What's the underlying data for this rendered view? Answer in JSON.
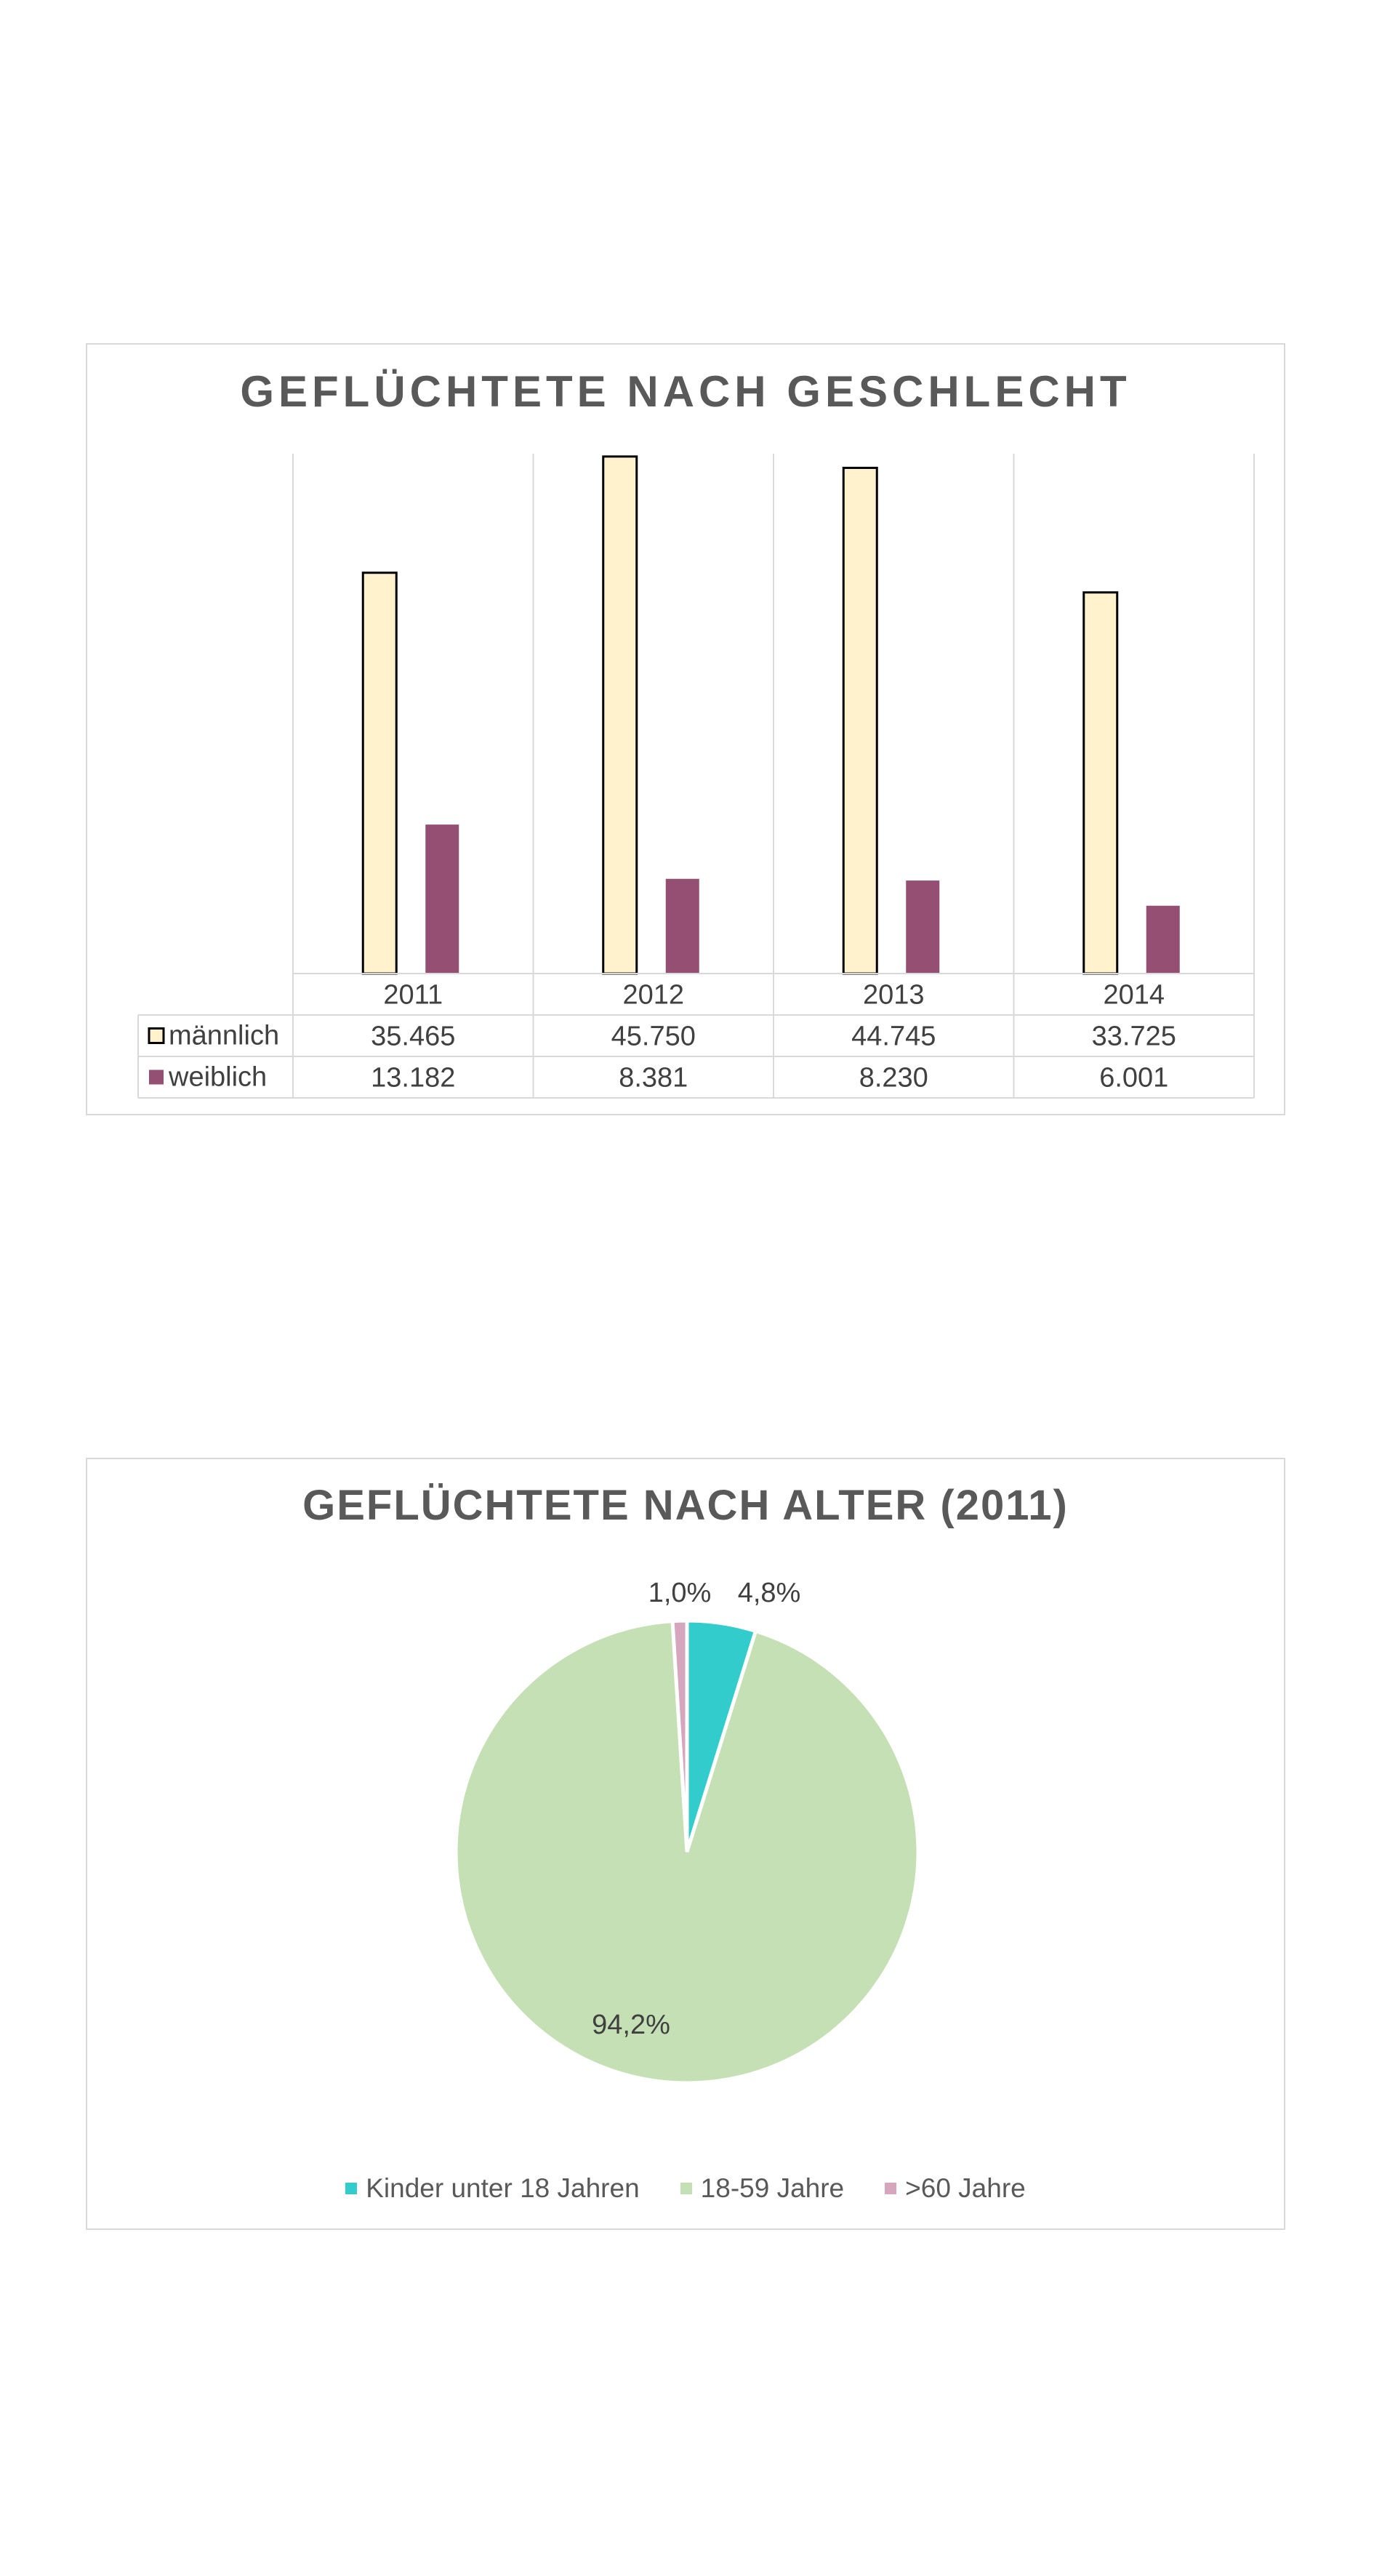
{
  "chart_data": [
    {
      "type": "bar",
      "title": "GEFLÜCHTETE NACH GESCHLECHT",
      "categories": [
        "2011",
        "2012",
        "2013",
        "2014"
      ],
      "series": [
        {
          "name": "männlich",
          "values": [
            35465,
            45750,
            44745,
            33725
          ],
          "labels": [
            "35.465",
            "45.750",
            "44.745",
            "33.725"
          ],
          "color": "#FFF2CC"
        },
        {
          "name": "weiblich",
          "values": [
            13182,
            8381,
            8230,
            6001
          ],
          "labels": [
            "13.182",
            "8.381",
            "8.230",
            "6.001"
          ],
          "color": "#954F72"
        }
      ],
      "ylim": [
        0,
        46000
      ],
      "data_table": true,
      "grid": "vertical"
    },
    {
      "type": "pie",
      "title": "GEFLÜCHTETE NACH ALTER (2011)",
      "slices": [
        {
          "name": "Kinder unter 18 Jahren",
          "value": 4.8,
          "label": "4,8%",
          "color": "#33CCCC"
        },
        {
          "name": "18-59 Jahre",
          "value": 94.2,
          "label": "94,2%",
          "color": "#C5E0B4"
        },
        {
          "name": ">60 Jahre",
          "value": 1.0,
          "label": "1,0%",
          "color": "#D5A6BD"
        }
      ],
      "legend": "bottom"
    }
  ]
}
